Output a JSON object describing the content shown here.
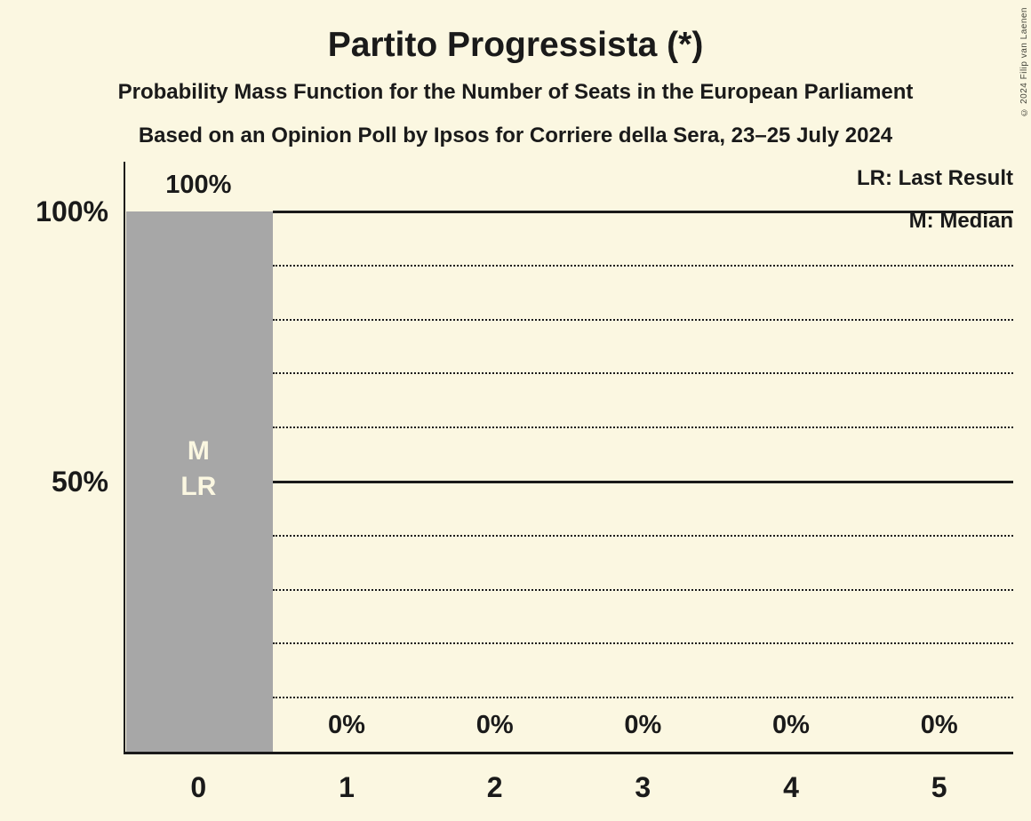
{
  "title": "Partito Progressista (*)",
  "subtitle1": "Probability Mass Function for the Number of Seats in the European Parliament",
  "subtitle2": "Based on an Opinion Poll by Ipsos for Corriere della Sera, 23–25 July 2024",
  "legend": {
    "lr": "LR: Last Result",
    "m": "M: Median"
  },
  "copyright": "© 2024 Filip van Laenen",
  "colors": {
    "background": "#fbf7e1",
    "text": "#1a1a1a",
    "bar": "#a7a7a7",
    "bar_label": "#fbf7e1"
  },
  "chart_data": {
    "type": "bar",
    "title": "Partito Progressista (*)",
    "xlabel": "",
    "ylabel": "",
    "categories": [
      "0",
      "1",
      "2",
      "3",
      "4",
      "5"
    ],
    "values": [
      100,
      0,
      0,
      0,
      0,
      0
    ],
    "value_labels": [
      "100%",
      "0%",
      "0%",
      "0%",
      "0%",
      "0%"
    ],
    "bar_annotations": [
      [
        "M",
        "LR"
      ],
      [],
      [],
      [],
      [],
      []
    ],
    "ylim": [
      0,
      100
    ],
    "y_axis_ticks": [
      {
        "label": "100%",
        "value": 100
      },
      {
        "label": "50%",
        "value": 50
      }
    ],
    "solid_gridlines": [
      100,
      50
    ],
    "dotted_gridlines": [
      90,
      80,
      70,
      60,
      40,
      30,
      20,
      10
    ],
    "legend_position": "top-right",
    "grid": "horizontal-only"
  }
}
